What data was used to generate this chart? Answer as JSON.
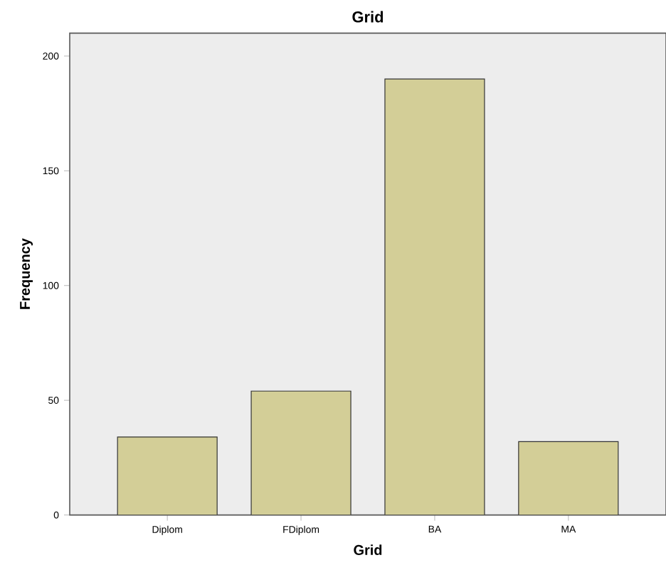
{
  "chart_data": {
    "type": "bar",
    "title": "Grid",
    "xlabel": "Grid",
    "ylabel": "Frequency",
    "categories": [
      "Diplom",
      "FDiplom",
      "BA",
      "MA"
    ],
    "values": [
      34,
      54,
      190,
      32
    ],
    "color": "#d3ce97",
    "ylim": [
      0,
      210
    ],
    "yticks": [
      0,
      50,
      100,
      150,
      200
    ]
  }
}
